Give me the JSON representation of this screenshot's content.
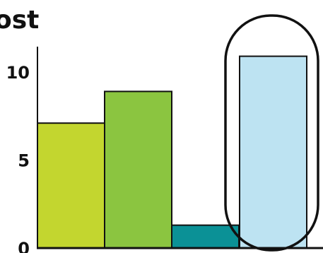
{
  "chart_data": {
    "type": "bar",
    "title": "ost",
    "xlabel": "",
    "ylabel": "",
    "categories": [
      "",
      "",
      "",
      ""
    ],
    "values": [
      7.1,
      8.9,
      1.3,
      10.9
    ],
    "colors": [
      "#c3d62f",
      "#8bc540",
      "#0b9196",
      "#bde3f2"
    ],
    "yticks": [
      "0",
      "5",
      "10"
    ],
    "ytick_values": [
      0,
      5,
      10
    ],
    "ylim": [
      0,
      11.2
    ],
    "grid": false,
    "highlight_index": 3
  }
}
